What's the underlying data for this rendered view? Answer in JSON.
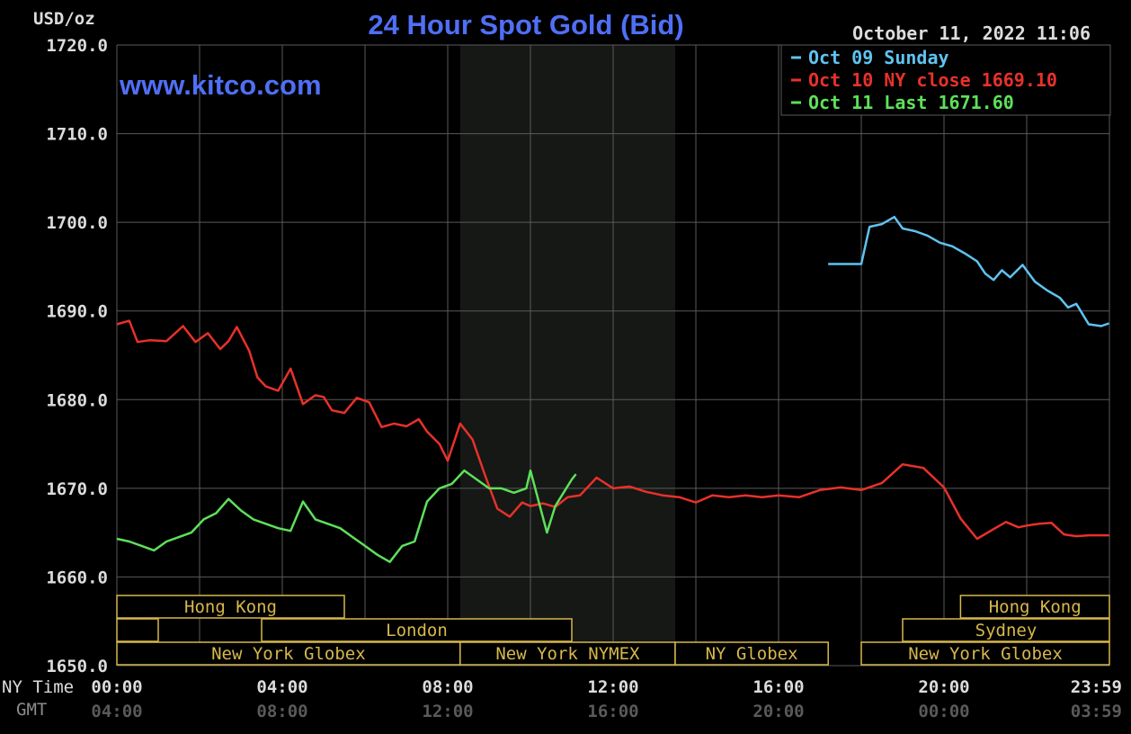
{
  "chart_data": {
    "type": "line",
    "title": "24 Hour Spot Gold (Bid)",
    "watermark": "www.kitco.com",
    "timestamp": "October 11, 2022 11:06",
    "ylabel": "USD/oz",
    "ylim": [
      1650,
      1720
    ],
    "yticks": [
      "1720.0",
      "1710.0",
      "1700.0",
      "1690.0",
      "1680.0",
      "1670.0",
      "1660.0",
      "1650.0"
    ],
    "xlim": [
      0,
      24
    ],
    "x_row_labels": {
      "ny": "NY Time",
      "gmt": "GMT"
    },
    "x_ticks_ny": [
      "00:00",
      "04:00",
      "08:00",
      "12:00",
      "16:00",
      "20:00",
      "23:59"
    ],
    "x_ticks_gmt": [
      "04:00",
      "08:00",
      "12:00",
      "16:00",
      "20:00",
      "00:00",
      "03:59"
    ],
    "shaded_range": [
      8.3,
      13.5
    ],
    "colors": {
      "sunday": "#5fc3f0",
      "ny_close": "#e8312a",
      "last": "#5ee05a",
      "title": "#4f6ff5",
      "grid": "#5a5a5a",
      "session": "#d7b84a"
    },
    "sessions": [
      {
        "label": "Hong Kong",
        "start": 0,
        "end": 5.5,
        "row": 0
      },
      {
        "label": "",
        "start": 0,
        "end": 1,
        "row": 1
      },
      {
        "label": "London",
        "start": 3.5,
        "end": 11,
        "row": 1
      },
      {
        "label": "New York Globex",
        "start": 0,
        "end": 8.3,
        "row": 2
      },
      {
        "label": "New York NYMEX",
        "start": 8.3,
        "end": 13.5,
        "row": 2
      },
      {
        "label": "NY Globex",
        "start": 13.5,
        "end": 17.2,
        "row": 2
      },
      {
        "label": "Hong Kong",
        "start": 20.4,
        "end": 24,
        "row": 0
      },
      {
        "label": "Sydney",
        "start": 19,
        "end": 24,
        "row": 1
      },
      {
        "label": "New York Globex",
        "start": 18,
        "end": 24,
        "row": 2
      }
    ],
    "series": [
      {
        "name": "Oct 09 Sunday",
        "legend": "Oct 09 Sunday",
        "color": "#5fc3f0",
        "x": [
          17.2,
          17.5,
          17.9,
          18.0,
          18.2,
          18.5,
          18.8,
          19.0,
          19.3,
          19.6,
          19.9,
          20.2,
          20.5,
          20.8,
          21.0,
          21.2,
          21.4,
          21.6,
          21.9,
          22.2,
          22.5,
          22.8,
          23.0,
          23.2,
          23.5,
          23.8,
          23.99
        ],
        "y": [
          1695.3,
          1695.3,
          1695.3,
          1695.3,
          1699.5,
          1699.8,
          1700.6,
          1699.3,
          1699.0,
          1698.5,
          1697.7,
          1697.3,
          1696.5,
          1695.6,
          1694.2,
          1693.5,
          1694.6,
          1693.8,
          1695.2,
          1693.3,
          1692.3,
          1691.5,
          1690.4,
          1690.8,
          1688.5,
          1688.3,
          1688.6
        ]
      },
      {
        "name": "Oct 10 NY close",
        "legend": "Oct 10 NY close 1669.10",
        "color": "#e8312a",
        "x": [
          0,
          0.3,
          0.5,
          0.8,
          1.2,
          1.6,
          1.9,
          2.2,
          2.5,
          2.7,
          2.9,
          3.2,
          3.4,
          3.6,
          3.9,
          4.2,
          4.5,
          4.8,
          5.0,
          5.2,
          5.5,
          5.8,
          6.1,
          6.4,
          6.7,
          7.0,
          7.3,
          7.5,
          7.8,
          8.0,
          8.3,
          8.6,
          8.9,
          9.2,
          9.5,
          9.8,
          10.0,
          10.3,
          10.6,
          10.9,
          11.2,
          11.6,
          12.0,
          12.4,
          12.8,
          13.2,
          13.6,
          14.0,
          14.4,
          14.8,
          15.2,
          15.6,
          16.0,
          16.5,
          17.0,
          17.5,
          18.0,
          18.5,
          19.0,
          19.5,
          20.0,
          20.4,
          20.8,
          21.2,
          21.5,
          21.8,
          22.0,
          22.3,
          22.6,
          22.9,
          23.2,
          23.5,
          23.8,
          23.99
        ],
        "y": [
          1688.5,
          1688.9,
          1686.5,
          1686.7,
          1686.6,
          1688.3,
          1686.5,
          1687.5,
          1685.7,
          1686.6,
          1688.2,
          1685.5,
          1682.5,
          1681.5,
          1681.0,
          1683.5,
          1679.5,
          1680.5,
          1680.3,
          1678.8,
          1678.5,
          1680.2,
          1679.7,
          1676.9,
          1677.3,
          1677.0,
          1677.8,
          1676.4,
          1675.0,
          1673.1,
          1677.3,
          1675.5,
          1671.5,
          1667.7,
          1666.8,
          1668.4,
          1668.0,
          1668.3,
          1667.9,
          1669.0,
          1669.2,
          1671.2,
          1670.0,
          1670.2,
          1669.6,
          1669.2,
          1669.0,
          1668.4,
          1669.2,
          1669.0,
          1669.2,
          1669.0,
          1669.2,
          1669.0,
          1669.8,
          1670.1,
          1669.8,
          1670.6,
          1672.7,
          1672.3,
          1670.1,
          1666.6,
          1664.3,
          1665.4,
          1666.2,
          1665.6,
          1665.8,
          1666.0,
          1666.1,
          1664.8,
          1664.6,
          1664.7,
          1664.7,
          1664.7
        ]
      },
      {
        "name": "Oct 11 Last",
        "legend": "Oct 11 Last 1671.60",
        "color": "#5ee05a",
        "x": [
          0,
          0.3,
          0.6,
          0.9,
          1.2,
          1.5,
          1.8,
          2.1,
          2.4,
          2.7,
          3.0,
          3.3,
          3.6,
          3.9,
          4.2,
          4.5,
          4.8,
          5.1,
          5.4,
          5.7,
          6.0,
          6.3,
          6.6,
          6.9,
          7.2,
          7.5,
          7.8,
          8.1,
          8.4,
          8.7,
          9.0,
          9.3,
          9.6,
          9.9,
          10.0,
          10.2,
          10.4,
          10.6,
          10.8,
          11.0,
          11.1
        ],
        "y": [
          1664.3,
          1664.0,
          1663.5,
          1663.0,
          1664.0,
          1664.5,
          1665.0,
          1666.5,
          1667.2,
          1668.8,
          1667.5,
          1666.5,
          1666.0,
          1665.5,
          1665.2,
          1668.5,
          1666.5,
          1666.0,
          1665.5,
          1664.5,
          1663.5,
          1662.5,
          1661.7,
          1663.5,
          1664.0,
          1668.5,
          1670.0,
          1670.5,
          1672.0,
          1671.0,
          1670.0,
          1670.0,
          1669.5,
          1670.0,
          1672.0,
          1668.5,
          1665.0,
          1668.0,
          1669.5,
          1671.0,
          1671.6
        ]
      }
    ]
  }
}
